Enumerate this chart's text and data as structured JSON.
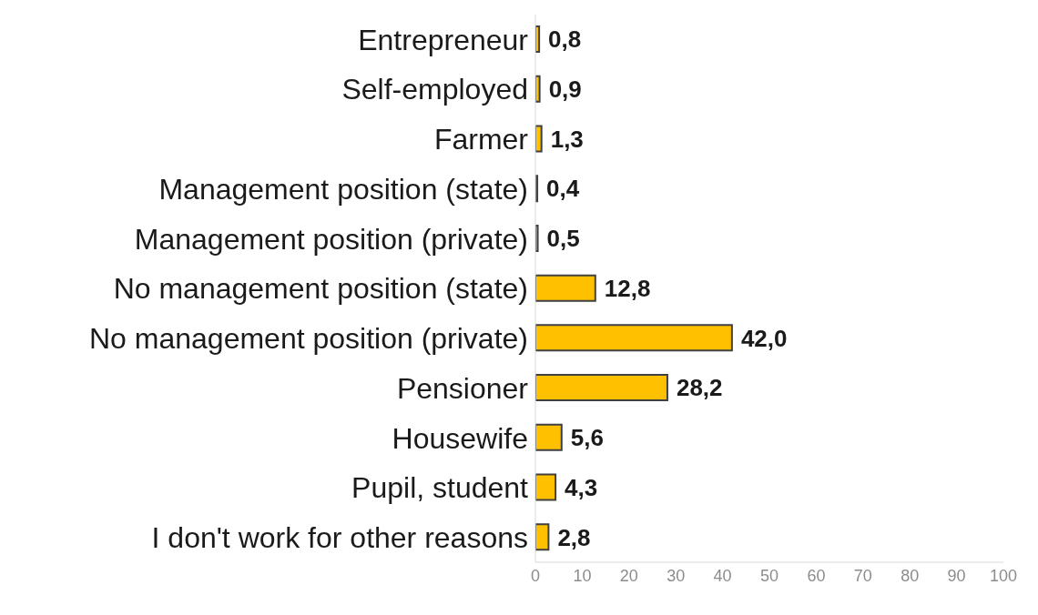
{
  "chart_data": {
    "type": "bar",
    "orientation": "horizontal",
    "categories": [
      "Entrepreneur",
      "Self-employed",
      "Farmer",
      "Management position (state)",
      "Management position (private)",
      "No management position (state)",
      "No management position (private)",
      "Pensioner",
      "Housewife",
      "Pupil, student",
      "I don't work for other reasons"
    ],
    "values": [
      0.8,
      0.9,
      1.3,
      0.4,
      0.5,
      12.8,
      42.0,
      28.2,
      5.6,
      4.3,
      2.8
    ],
    "value_labels": [
      "0,8",
      "0,9",
      "1,3",
      "0,4",
      "0,5",
      "12,8",
      "42,0",
      "28,2",
      "5,6",
      "4,3",
      "2,8"
    ],
    "color": "#ffc000",
    "xlim": [
      0,
      100
    ],
    "xticks": [
      0,
      10,
      20,
      30,
      40,
      50,
      60,
      70,
      80,
      90,
      100
    ],
    "grid": false,
    "legend": false
  }
}
